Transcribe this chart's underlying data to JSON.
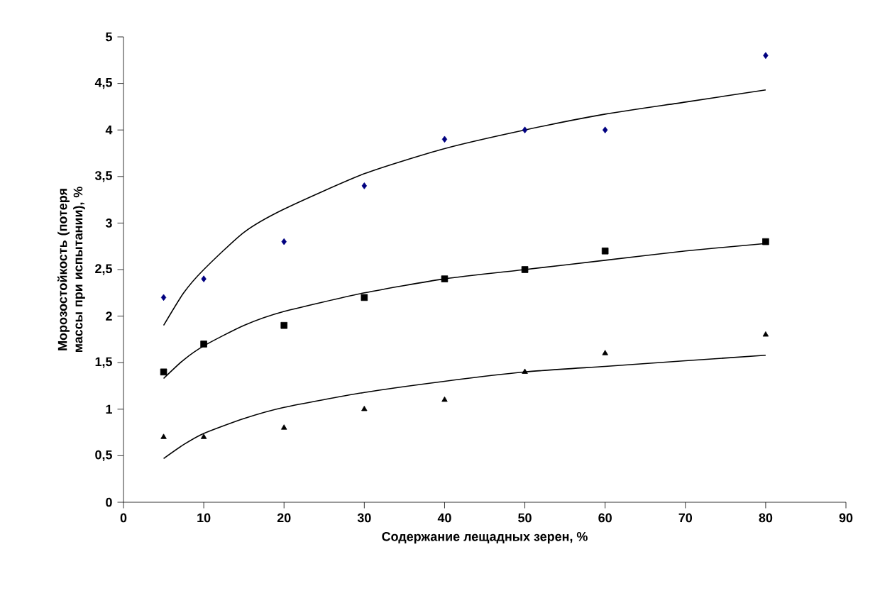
{
  "chart_data": {
    "type": "scatter",
    "xlabel": "Содержание лещадных зерен, %",
    "ylabel": "Морозостойкость (потеря массы при испытании), %",
    "xlim": [
      0,
      90
    ],
    "ylim": [
      0,
      5
    ],
    "xticks": [
      0,
      10,
      20,
      30,
      40,
      50,
      60,
      70,
      80,
      90
    ],
    "yticks": [
      0,
      {
        "value": 0.5,
        "label": "0,5"
      },
      1,
      {
        "value": 1.5,
        "label": "1,5"
      },
      2,
      {
        "value": 2.5,
        "label": "2,5"
      },
      3,
      {
        "value": 3.5,
        "label": "3,5"
      },
      4,
      {
        "value": 4.5,
        "label": "4,5"
      },
      5
    ],
    "grid": false,
    "legend": false,
    "series": [
      {
        "marker": "diamond",
        "color": "#000080",
        "x": [
          5,
          10,
          20,
          30,
          40,
          50,
          60,
          80
        ],
        "values": [
          2.2,
          2.4,
          2.8,
          3.4,
          3.9,
          4.0,
          4.0,
          4.8
        ]
      },
      {
        "marker": "square",
        "color": "#000000",
        "x": [
          5,
          10,
          20,
          30,
          40,
          50,
          60,
          80
        ],
        "values": [
          1.4,
          1.7,
          1.9,
          2.2,
          2.4,
          2.5,
          2.7,
          2.8
        ]
      },
      {
        "marker": "triangle",
        "color": "#000000",
        "x": [
          5,
          10,
          20,
          30,
          40,
          50,
          60,
          80
        ],
        "values": [
          0.7,
          0.7,
          0.8,
          1.0,
          1.1,
          1.4,
          1.6,
          1.8
        ]
      },
      {
        "type": "line",
        "marker": "none",
        "color": "#000000",
        "x": [
          5,
          7.5,
          10,
          15,
          20,
          30,
          40,
          50,
          60,
          70,
          80
        ],
        "values": [
          1.9,
          2.25,
          2.5,
          2.9,
          3.15,
          3.53,
          3.8,
          4.0,
          4.17,
          4.3,
          4.43
        ]
      },
      {
        "type": "line",
        "marker": "none",
        "color": "#000000",
        "x": [
          5,
          7.5,
          10,
          15,
          20,
          30,
          40,
          50,
          60,
          70,
          80
        ],
        "values": [
          1.33,
          1.53,
          1.68,
          1.9,
          2.05,
          2.25,
          2.4,
          2.5,
          2.6,
          2.7,
          2.78
        ]
      },
      {
        "type": "line",
        "marker": "none",
        "color": "#000000",
        "x": [
          5,
          7.5,
          10,
          15,
          20,
          30,
          40,
          50,
          60,
          70,
          80
        ],
        "values": [
          0.47,
          0.62,
          0.74,
          0.9,
          1.02,
          1.18,
          1.3,
          1.4,
          1.46,
          1.52,
          1.58
        ]
      }
    ]
  }
}
